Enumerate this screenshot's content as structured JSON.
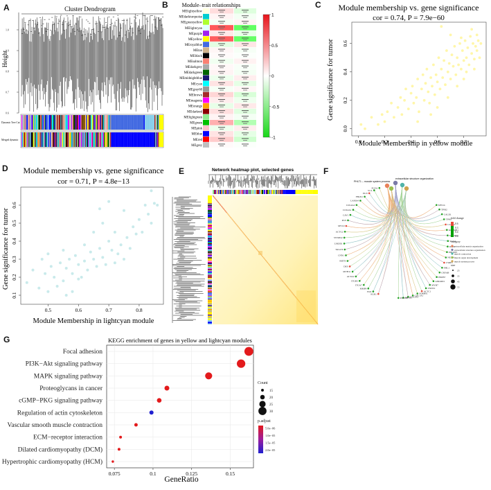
{
  "panel_labels": {
    "a": "A",
    "b": "B",
    "c": "C",
    "d": "D",
    "e": "E",
    "f": "F",
    "g": "G"
  },
  "panel_a": {
    "title": "Cluster Dendrogram",
    "ylabel": "Height",
    "yticks": [
      "0.6",
      "0.7",
      "0.8",
      "0.9",
      "1.0"
    ],
    "row_labels": [
      "Dynamic Tree Cut",
      "Merged dynamic"
    ]
  },
  "panel_b": {
    "title": "Module–trait relationships",
    "modules": [
      "MElightyellow",
      "MEdarkturquoise",
      "MEgreenyellow",
      "MElightcyan",
      "MEpurple",
      "MEyellow",
      "MEroyalblue",
      "MEtan",
      "MEblack",
      "MEsalmon",
      "MEdarkgrey",
      "MEdarkgreen",
      "MEmidnightblue",
      "MEcyan",
      "MEgrey60",
      "MEbrown",
      "MEmagenta",
      "MEorange",
      "MEdarkred",
      "MElightgreen",
      "MEgreen",
      "MEpink",
      "MEblue",
      "MEred",
      "MEgrey"
    ],
    "colors": [
      "#ffffe0",
      "#00ced1",
      "#adff2f",
      "#e0ffff",
      "#a020f0",
      "#ffff00",
      "#4169e1",
      "#d2b48c",
      "#000000",
      "#fa8072",
      "#a9a9a9",
      "#006400",
      "#191970",
      "#00ffff",
      "#999999",
      "#a52a2a",
      "#ff00ff",
      "#ffa500",
      "#8b0000",
      "#90ee90",
      "#00c000",
      "#ffc0cb",
      "#0000ff",
      "#ff0000",
      "#bebebe"
    ],
    "colorbar_ticks": [
      "1",
      "0.5",
      "0",
      "-0.5",
      "-1"
    ]
  },
  "panel_c": {
    "title": "Module membership vs. gene significance",
    "subtitle": "cor = 0.74, P = 7.9e−60",
    "xlabel": "Module Membership in yellow module",
    "ylabel": "Gene significance for tumor",
    "xticks": [
      "0.0",
      "0.2",
      "0.4",
      "0.6",
      "0.8"
    ],
    "yticks": [
      "0.0",
      "0.2",
      "0.4",
      "0.6"
    ]
  },
  "panel_d": {
    "title": "Module membership vs. gene significance",
    "subtitle": "cor = 0.71, P = 4.8e−13",
    "xlabel": "Module Membership in lightcyan module",
    "ylabel": "Gene significance for tumor",
    "xticks": [
      "0.5",
      "0.6",
      "0.7",
      "0.8"
    ],
    "yticks": [
      "0.1",
      "0.2",
      "0.3",
      "0.4",
      "0.5",
      "0.6"
    ]
  },
  "panel_e": {
    "title": "Network heatmap plot, selected genes"
  },
  "panel_f": {
    "top_label_1": "PHLT1 – muscle system process",
    "top_label_2": "extracellular structure organization",
    "legend_fold_title": "fold change",
    "legend_fold_ticks": [
      "0.6",
      "0.3",
      "0.4",
      "0.4"
    ],
    "legend_category_title": "category",
    "categories": [
      "extracellular matrix organization",
      "extracellular structure organization",
      "muscle contraction",
      "muscle organ development",
      "muscle system process"
    ],
    "legend_size_title": "size",
    "size_ticks": [
      "25",
      "35",
      "45",
      "55"
    ],
    "genes_left": [
      "EGR1",
      "FOS",
      "MMP9",
      "ITGA7",
      "ITGB3",
      "ACTA2",
      "MYH11",
      "DES",
      "SMTN",
      "CNN1",
      "TAGLN",
      "LMOD1",
      "SYNPO2",
      "ACTG2",
      "MYL9",
      "PLN",
      "CAV1",
      "COL4A1",
      "COL4A2",
      "LAMA4",
      "FBLN1",
      "ELN",
      "VCL",
      "FLNA"
    ],
    "genes_right": [
      "MYLK",
      "TPM2",
      "CALD1",
      "TPM1",
      "CASQ2",
      "KCNMB1",
      "MYOCD",
      "SGCA",
      "DMD",
      "PDLIM3",
      "NEXN",
      "CSRP1",
      "FHL1",
      "CRYAB",
      "HSPB7",
      "ANKRD1",
      "MYH7",
      "TNNT2",
      "ACTC1",
      "SORBS1",
      "COL1A1",
      "COL3A1",
      "SPARC",
      "POSTN"
    ]
  },
  "panel_g": {
    "title": "KEGG enrichment of genes in yellow and lightcyan modules",
    "xlabel": "GeneRatio",
    "count_title": "Count",
    "padj_title": "p.adjust",
    "count_ticks": [
      "15",
      "20",
      "25",
      "30"
    ],
    "padj_ticks": [
      "5.0e−06",
      "1.0e−05",
      "1.5e−05",
      "2.0e−05"
    ]
  },
  "chart_data": [
    {
      "type": "scatter",
      "title": "Module membership vs. gene significance",
      "subtitle": "cor = 0.74, P = 7.9e−60",
      "xlabel": "Module Membership in yellow module",
      "ylabel": "Gene significance for tumor",
      "xlim": [
        -0.05,
        0.97
      ],
      "ylim": [
        -0.05,
        0.75
      ],
      "points": [
        [
          0.02,
          0.03
        ],
        [
          0.05,
          0.0
        ],
        [
          0.1,
          0.08
        ],
        [
          0.15,
          0.03
        ],
        [
          0.18,
          0.1
        ],
        [
          0.2,
          0.05
        ],
        [
          0.22,
          0.12
        ],
        [
          0.25,
          0.18
        ],
        [
          0.27,
          0.08
        ],
        [
          0.3,
          0.15
        ],
        [
          0.32,
          0.22
        ],
        [
          0.33,
          0.1
        ],
        [
          0.35,
          0.2
        ],
        [
          0.36,
          0.28
        ],
        [
          0.38,
          0.14
        ],
        [
          0.4,
          0.25
        ],
        [
          0.41,
          0.3
        ],
        [
          0.42,
          0.18
        ],
        [
          0.44,
          0.22
        ],
        [
          0.45,
          0.35
        ],
        [
          0.46,
          0.12
        ],
        [
          0.48,
          0.28
        ],
        [
          0.49,
          0.38
        ],
        [
          0.5,
          0.2
        ],
        [
          0.51,
          0.32
        ],
        [
          0.52,
          0.42
        ],
        [
          0.53,
          0.26
        ],
        [
          0.54,
          0.18
        ],
        [
          0.55,
          0.36
        ],
        [
          0.56,
          0.3
        ],
        [
          0.57,
          0.45
        ],
        [
          0.58,
          0.24
        ],
        [
          0.59,
          0.38
        ],
        [
          0.6,
          0.33
        ],
        [
          0.61,
          0.5
        ],
        [
          0.62,
          0.28
        ],
        [
          0.63,
          0.42
        ],
        [
          0.64,
          0.36
        ],
        [
          0.65,
          0.48
        ],
        [
          0.66,
          0.31
        ],
        [
          0.67,
          0.55
        ],
        [
          0.68,
          0.4
        ],
        [
          0.69,
          0.46
        ],
        [
          0.7,
          0.35
        ],
        [
          0.71,
          0.52
        ],
        [
          0.72,
          0.44
        ],
        [
          0.73,
          0.58
        ],
        [
          0.74,
          0.38
        ],
        [
          0.75,
          0.5
        ],
        [
          0.76,
          0.45
        ],
        [
          0.77,
          0.6
        ],
        [
          0.78,
          0.42
        ],
        [
          0.79,
          0.55
        ],
        [
          0.8,
          0.48
        ],
        [
          0.81,
          0.62
        ],
        [
          0.82,
          0.5
        ],
        [
          0.83,
          0.57
        ],
        [
          0.84,
          0.45
        ],
        [
          0.85,
          0.65
        ],
        [
          0.86,
          0.53
        ],
        [
          0.87,
          0.6
        ],
        [
          0.88,
          0.49
        ],
        [
          0.89,
          0.58
        ],
        [
          0.9,
          0.55
        ],
        [
          0.91,
          0.62
        ],
        [
          0.92,
          0.5
        ],
        [
          0.93,
          0.6
        ],
        [
          0.63,
          0.72
        ],
        [
          0.7,
          0.66
        ],
        [
          0.8,
          0.35
        ],
        [
          0.55,
          0.1
        ],
        [
          0.45,
          0.05
        ],
        [
          0.6,
          0.15
        ],
        [
          0.68,
          0.22
        ],
        [
          0.75,
          0.3
        ],
        [
          0.82,
          0.4
        ],
        [
          0.88,
          0.42
        ],
        [
          0.9,
          0.66
        ],
        [
          0.86,
          0.7
        ],
        [
          0.78,
          0.64
        ]
      ]
    },
    {
      "type": "scatter",
      "title": "Module membership vs. gene significance",
      "subtitle": "cor = 0.71, P = 4.8e−13",
      "xlabel": "Module Membership in lightcyan module",
      "ylabel": "Gene significance for tumor",
      "xlim": [
        0.41,
        0.88
      ],
      "ylim": [
        0.05,
        0.7
      ],
      "points": [
        [
          0.43,
          0.17
        ],
        [
          0.45,
          0.24
        ],
        [
          0.47,
          0.14
        ],
        [
          0.48,
          0.3
        ],
        [
          0.49,
          0.22
        ],
        [
          0.5,
          0.33
        ],
        [
          0.5,
          0.12
        ],
        [
          0.51,
          0.26
        ],
        [
          0.52,
          0.2
        ],
        [
          0.53,
          0.15
        ],
        [
          0.54,
          0.28
        ],
        [
          0.55,
          0.18
        ],
        [
          0.55,
          0.35
        ],
        [
          0.56,
          0.25
        ],
        [
          0.57,
          0.3
        ],
        [
          0.58,
          0.22
        ],
        [
          0.58,
          0.12
        ],
        [
          0.59,
          0.32
        ],
        [
          0.6,
          0.27
        ],
        [
          0.61,
          0.2
        ],
        [
          0.62,
          0.38
        ],
        [
          0.62,
          0.29
        ],
        [
          0.63,
          0.24
        ],
        [
          0.64,
          0.34
        ],
        [
          0.65,
          0.3
        ],
        [
          0.65,
          0.45
        ],
        [
          0.66,
          0.26
        ],
        [
          0.67,
          0.36
        ],
        [
          0.68,
          0.31
        ],
        [
          0.68,
          0.5
        ],
        [
          0.69,
          0.27
        ],
        [
          0.7,
          0.4
        ],
        [
          0.71,
          0.35
        ],
        [
          0.72,
          0.28
        ],
        [
          0.72,
          0.45
        ],
        [
          0.73,
          0.33
        ],
        [
          0.74,
          0.38
        ],
        [
          0.75,
          0.3
        ],
        [
          0.76,
          0.42
        ],
        [
          0.77,
          0.36
        ],
        [
          0.78,
          0.48
        ],
        [
          0.79,
          0.44
        ],
        [
          0.8,
          0.52
        ],
        [
          0.81,
          0.45
        ],
        [
          0.82,
          0.6
        ],
        [
          0.83,
          0.55
        ],
        [
          0.84,
          0.68
        ],
        [
          0.85,
          0.61
        ],
        [
          0.86,
          0.6
        ],
        [
          0.84,
          0.5
        ],
        [
          0.7,
          0.62
        ],
        [
          0.75,
          0.57
        ],
        [
          0.67,
          0.58
        ],
        [
          0.6,
          0.19
        ],
        [
          0.56,
          0.1
        ]
      ]
    },
    {
      "type": "scatter",
      "title": "KEGG enrichment of genes in yellow and lightcyan modules",
      "xlabel": "GeneRatio",
      "xlim": [
        0.07,
        0.165
      ],
      "xticks": [
        0.075,
        0.1,
        0.125,
        0.15
      ],
      "categories": [
        "Focal adhesion",
        "PI3K−Akt signaling pathway",
        "MAPK signaling pathway",
        "Proteoglycans in cancer",
        "cGMP−PKG signaling pathway",
        "Regulation of actin cytoskeleton",
        "Vascular smooth muscle contraction",
        "ECM−receptor interaction",
        "Dilated cardiomyopathy (DCM)",
        "Hypertrophic cardiomyopathy (HCM)"
      ],
      "gene_ratio": [
        0.162,
        0.157,
        0.136,
        0.109,
        0.104,
        0.099,
        0.089,
        0.079,
        0.078,
        0.074
      ],
      "count": [
        32,
        31,
        27,
        21,
        20,
        19,
        17,
        15,
        15,
        14
      ],
      "p_adjust": [
        2e-07,
        2e-07,
        5e-07,
        1e-06,
        1e-06,
        2e-05,
        2e-06,
        3e-06,
        3e-06,
        4e-06
      ],
      "legend": [
        "Count",
        "p.adjust"
      ]
    }
  ]
}
